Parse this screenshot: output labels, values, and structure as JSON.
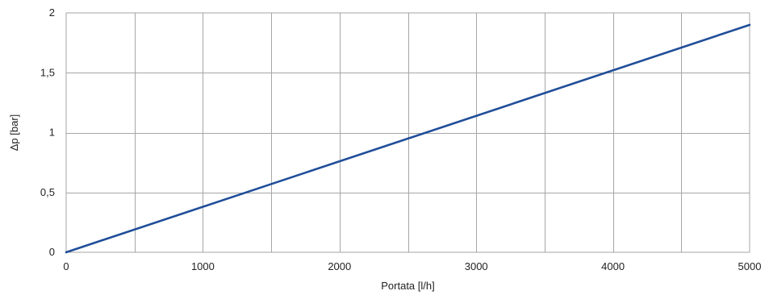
{
  "chart_data": {
    "type": "line",
    "title": "",
    "xlabel": "Portata [l/h]",
    "ylabel": "Δp [bar]",
    "xlim": [
      0,
      5000
    ],
    "ylim": [
      0,
      2
    ],
    "x_ticks": [
      0,
      1000,
      2000,
      3000,
      4000,
      5000
    ],
    "x_tick_labels": [
      "0",
      "1000",
      "2000",
      "3000",
      "4000",
      "5000"
    ],
    "x_grid_step": 500,
    "y_ticks": [
      0,
      0.5,
      1,
      1.5,
      2
    ],
    "y_tick_labels": [
      "0",
      "0,5",
      "1",
      "1,5",
      "2"
    ],
    "grid": true,
    "legend": "none",
    "series": [
      {
        "color": "#1f4e99",
        "x": [
          0,
          5000
        ],
        "y": [
          0,
          1.9
        ]
      }
    ]
  }
}
